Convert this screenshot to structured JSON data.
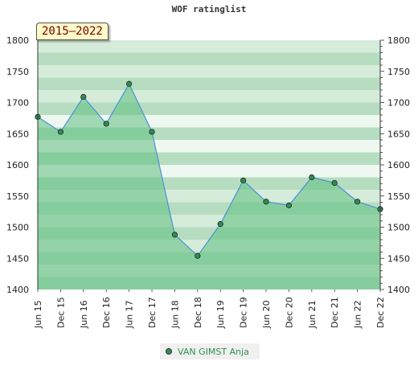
{
  "title": "WOF ratinglist",
  "badge": "2015–2022",
  "legend": {
    "label": "VAN GIMST Anja",
    "color": "#2f8f4f"
  },
  "colors": {
    "line": "#4a90d9",
    "marker_fill": "#2f8f4f",
    "area_fill": "#5fbf7f"
  },
  "chart_data": {
    "type": "area",
    "title": "WOF ratinglist",
    "categories": [
      "Jun 15",
      "Dec 15",
      "Jun 16",
      "Dec 16",
      "Jun 17",
      "Dec 17",
      "Jun 18",
      "Dec 18",
      "Jun 19",
      "Dec 19",
      "Jun 20",
      "Dec 20",
      "Jun 21",
      "Dec 21",
      "Jun 22",
      "Dec 22"
    ],
    "series": [
      {
        "name": "VAN GIMST Anja",
        "values": [
          1677,
          1653,
          1709,
          1666,
          1730,
          1653,
          1488,
          1454,
          1505,
          1575,
          1541,
          1535,
          1580,
          1571,
          1541,
          1529
        ]
      }
    ],
    "ylim": [
      1400,
      1800
    ],
    "y_ticks": [
      1400,
      1450,
      1500,
      1550,
      1600,
      1650,
      1700,
      1750,
      1800
    ],
    "secondary_y_axis": true,
    "grid": "banded",
    "legend_position": "bottom"
  }
}
